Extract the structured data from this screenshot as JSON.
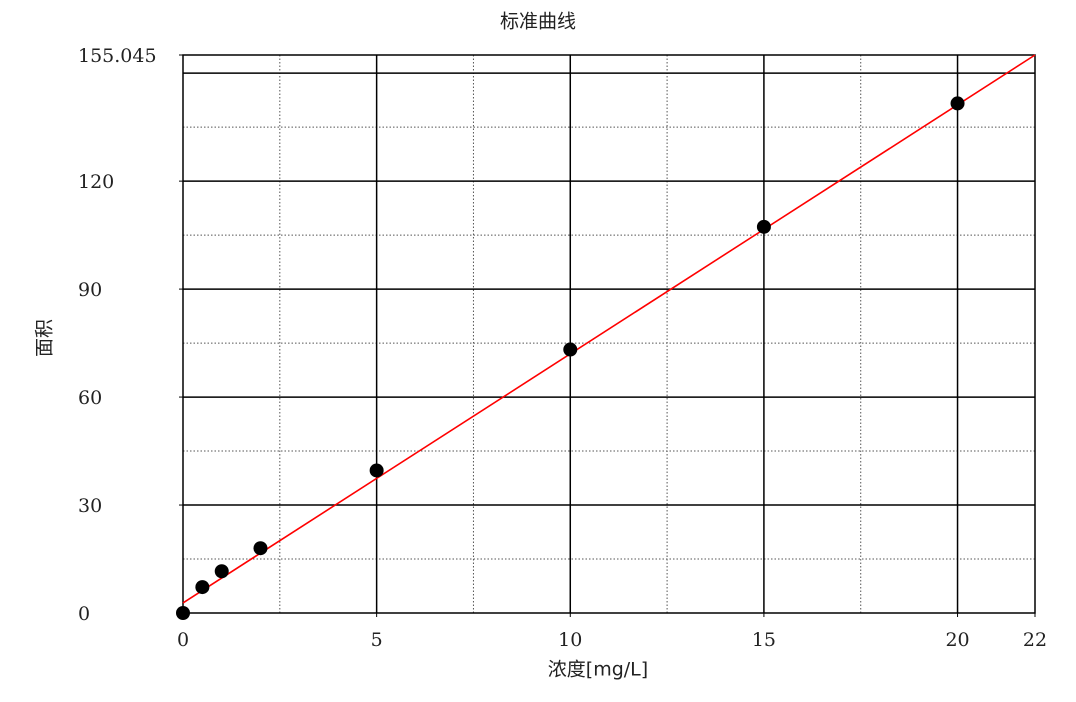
{
  "chart_data": {
    "type": "scatter",
    "title": "标准曲线",
    "x_label": "浓度[mg/L]",
    "y_label": "面积",
    "series": [
      {
        "type": "scatter",
        "color": "#000000",
        "x": [
          0,
          0.5,
          1,
          2,
          5,
          10,
          15,
          20
        ],
        "values": [
          0,
          7.2,
          11.6,
          18,
          39.6,
          73.2,
          107.3,
          141.6
        ]
      },
      {
        "type": "line",
        "color": "#ff0000",
        "x": [
          0,
          22
        ],
        "values": [
          2.8,
          155.045
        ]
      }
    ],
    "xlim": [
      0,
      22
    ],
    "ylim": [
      0,
      155.045
    ],
    "xticks": [
      0,
      5,
      10,
      15,
      20,
      22
    ],
    "yticks": [
      0,
      30,
      60,
      90,
      120,
      155.045
    ],
    "xgrid_major": [
      5,
      10,
      15,
      20
    ],
    "xgrid_minor": [
      2.5,
      7.5,
      12.5,
      17.5
    ],
    "ygrid_major": [
      30,
      60,
      90,
      120,
      150
    ],
    "ygrid_minor": [
      15,
      45,
      75,
      105,
      135
    ],
    "grid": true
  }
}
